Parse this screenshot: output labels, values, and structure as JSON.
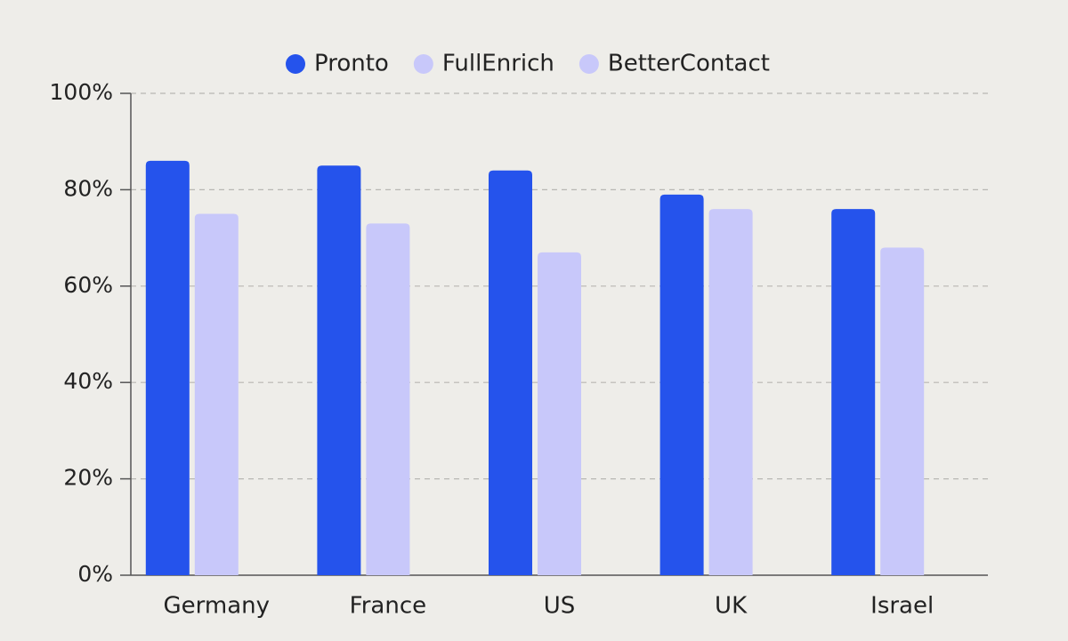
{
  "chart_data": {
    "type": "bar",
    "categories": [
      "Germany",
      "France",
      "US",
      "UK",
      "Israel"
    ],
    "series": [
      {
        "name": "Pronto",
        "color": "#2553ec",
        "values": [
          86,
          85,
          84,
          79,
          76
        ]
      },
      {
        "name": "FullEnrich",
        "color": "#c8c8fa",
        "values": [
          75,
          73,
          67,
          76,
          68
        ]
      },
      {
        "name": "BetterContact",
        "color": "#c8c8fa",
        "values": [
          null,
          null,
          null,
          null,
          null
        ]
      }
    ],
    "ylim": [
      0,
      100
    ],
    "yticks": [
      {
        "value": 0,
        "label": "0%"
      },
      {
        "value": 20,
        "label": "20%"
      },
      {
        "value": 40,
        "label": "40%"
      },
      {
        "value": 60,
        "label": "60%"
      },
      {
        "value": 80,
        "label": "80%"
      },
      {
        "value": 100,
        "label": "100%"
      }
    ],
    "grid": true,
    "legend": "top"
  }
}
